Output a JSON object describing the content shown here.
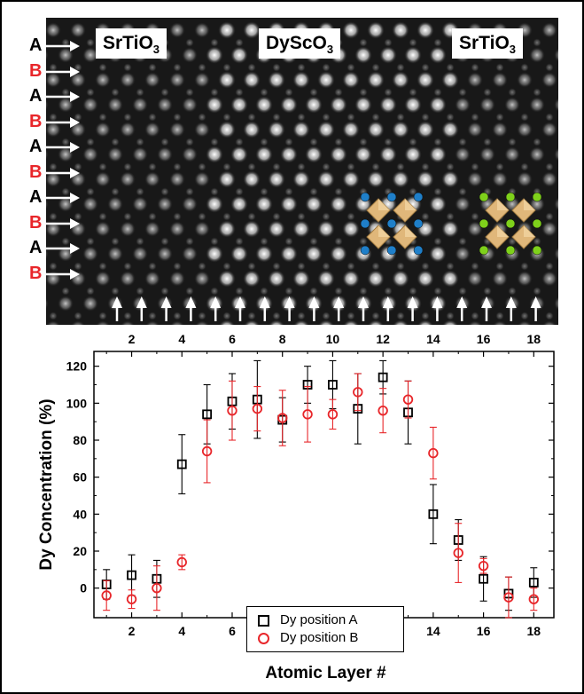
{
  "figure": {
    "micrograph": {
      "regions": [
        {
          "label": "SrTiO",
          "sub": "3"
        },
        {
          "label": "DyScO",
          "sub": "3"
        },
        {
          "label": "SrTiO",
          "sub": "3"
        }
      ],
      "layer_labels": [
        "A",
        "B",
        "A",
        "B",
        "A",
        "B",
        "A",
        "B",
        "A",
        "B"
      ],
      "colors": {
        "A": "#000000",
        "B": "#e8262a",
        "arrow": "#ffffff",
        "octahedron": "#e0b77a",
        "dy_atom": "#1f7fc9",
        "sr_atom": "#7fd11b"
      }
    }
  },
  "legend": {
    "entries": [
      {
        "name": "Dy position A",
        "marker": "square",
        "color": "#000000"
      },
      {
        "name": "Dy position B",
        "marker": "circle",
        "color": "#e8262a"
      }
    ]
  },
  "chart_data": {
    "type": "scatter",
    "xlabel": "Atomic Layer #",
    "ylabel": "Dy Concentration (%)",
    "xlim": [
      0.5,
      18.8
    ],
    "ylim": [
      -16,
      128
    ],
    "xticks": [
      2,
      4,
      6,
      8,
      10,
      12,
      14,
      16,
      18
    ],
    "yticks": [
      0,
      20,
      40,
      60,
      80,
      100,
      120
    ],
    "top_axis_ticks": [
      2,
      4,
      6,
      8,
      10,
      12,
      14,
      16,
      18
    ],
    "legend_position": "bottom-center",
    "series": [
      {
        "name": "Dy position A",
        "marker": "square",
        "color": "#000000",
        "x": [
          1,
          2,
          3,
          4,
          5,
          6,
          7,
          8,
          9,
          10,
          11,
          12,
          13,
          14,
          15,
          16,
          17,
          18
        ],
        "y": [
          2,
          7,
          5,
          67,
          94,
          101,
          102,
          91,
          110,
          110,
          97,
          114,
          95,
          40,
          26,
          5,
          -3,
          3
        ],
        "err": [
          8,
          11,
          10,
          16,
          16,
          15,
          21,
          12,
          10,
          13,
          19,
          9,
          17,
          16,
          11,
          12,
          9,
          8
        ]
      },
      {
        "name": "Dy position B",
        "marker": "circle",
        "color": "#e8262a",
        "x": [
          1,
          2,
          3,
          4,
          5,
          6,
          7,
          8,
          9,
          10,
          11,
          12,
          13,
          14,
          15,
          16,
          17,
          18
        ],
        "y": [
          -4,
          -6,
          0,
          14,
          74,
          96,
          97,
          92,
          94,
          94,
          106,
          96,
          102,
          73,
          19,
          12,
          -5,
          -6
        ],
        "err": [
          8,
          5,
          12,
          4,
          17,
          16,
          12,
          15,
          15,
          8,
          10,
          12,
          10,
          14,
          16,
          4,
          11,
          6
        ]
      }
    ]
  }
}
